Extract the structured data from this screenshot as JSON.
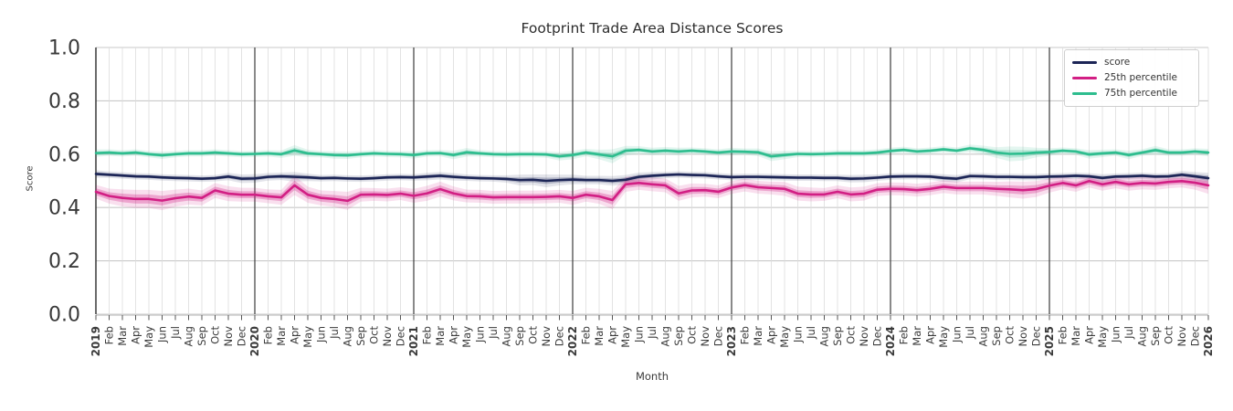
{
  "title": "Footprint Trade Area Distance Scores",
  "axes": {
    "xlabel": "Month",
    "ylabel": "Score"
  },
  "colors": {
    "background": "#ffffff",
    "title_text": "#2d2d2d",
    "tick_text": "#3a3a3a",
    "grid_minor": "#dcdcdc",
    "grid_major_h": "#c9c9c9",
    "year_line": "#3b3b3b",
    "spine_left": "#2b2b2b",
    "spine_bottom": "#cccccc",
    "legend_border": "#cfcfcf"
  },
  "chart_data": {
    "type": "line",
    "title": "Footprint Trade Area Distance Scores",
    "xlabel": "Month",
    "ylabel": "Score",
    "ylim": [
      0.0,
      1.0
    ],
    "y_ticks": [
      0.0,
      0.2,
      0.4,
      0.6,
      0.8,
      1.0
    ],
    "grid": true,
    "legend_position": "upper right",
    "year_indices": [
      0,
      12,
      24,
      36,
      48,
      60,
      72,
      84
    ],
    "x_labels": [
      "2019",
      "Feb",
      "Mar",
      "Apr",
      "May",
      "Jun",
      "Jul",
      "Aug",
      "Sep",
      "Oct",
      "Nov",
      "Dec",
      "2020",
      "Feb",
      "Mar",
      "Apr",
      "May",
      "Jun",
      "Jul",
      "Aug",
      "Sep",
      "Oct",
      "Nov",
      "Dec",
      "2021",
      "Feb",
      "Mar",
      "Apr",
      "May",
      "Jun",
      "Jul",
      "Aug",
      "Sep",
      "Oct",
      "Nov",
      "Dec",
      "2022",
      "Feb",
      "Mar",
      "Apr",
      "May",
      "Jun",
      "Jul",
      "Aug",
      "Sep",
      "Oct",
      "Nov",
      "Dec",
      "2023",
      "Feb",
      "Mar",
      "Apr",
      "May",
      "Jun",
      "Jul",
      "Aug",
      "Sep",
      "Oct",
      "Nov",
      "Dec",
      "2024",
      "Feb",
      "Mar",
      "Apr",
      "May",
      "Jun",
      "Jul",
      "Aug",
      "Sep",
      "Oct",
      "Nov",
      "Dec",
      "2025",
      "Feb",
      "Mar",
      "Apr",
      "May",
      "Jun",
      "Jul",
      "Aug",
      "Sep",
      "Oct",
      "Nov",
      "Dec",
      "2026"
    ],
    "series": [
      {
        "name": "score",
        "color": "#1c2556",
        "band_alpha_inner": 0.25,
        "band_alpha_outer": 0.12,
        "values": [
          0.526,
          0.523,
          0.52,
          0.517,
          0.516,
          0.513,
          0.511,
          0.51,
          0.508,
          0.51,
          0.516,
          0.508,
          0.509,
          0.515,
          0.517,
          0.515,
          0.513,
          0.51,
          0.511,
          0.509,
          0.508,
          0.51,
          0.513,
          0.514,
          0.513,
          0.516,
          0.519,
          0.515,
          0.512,
          0.51,
          0.509,
          0.507,
          0.503,
          0.504,
          0.5,
          0.503,
          0.505,
          0.503,
          0.503,
          0.5,
          0.504,
          0.515,
          0.519,
          0.522,
          0.524,
          0.522,
          0.521,
          0.517,
          0.514,
          0.515,
          0.515,
          0.514,
          0.513,
          0.512,
          0.512,
          0.511,
          0.511,
          0.508,
          0.509,
          0.512,
          0.516,
          0.517,
          0.517,
          0.516,
          0.511,
          0.508,
          0.518,
          0.517,
          0.515,
          0.515,
          0.514,
          0.514,
          0.516,
          0.517,
          0.519,
          0.517,
          0.511,
          0.516,
          0.517,
          0.519,
          0.516,
          0.517,
          0.523,
          0.517,
          0.51
        ],
        "band": [
          0.007,
          0.006,
          0.006,
          0.006,
          0.006,
          0.006,
          0.006,
          0.006,
          0.006,
          0.006,
          0.007,
          0.008,
          0.008,
          0.007,
          0.007,
          0.009,
          0.007,
          0.006,
          0.006,
          0.006,
          0.006,
          0.006,
          0.006,
          0.006,
          0.006,
          0.007,
          0.007,
          0.007,
          0.006,
          0.006,
          0.006,
          0.007,
          0.01,
          0.01,
          0.012,
          0.01,
          0.009,
          0.008,
          0.008,
          0.009,
          0.009,
          0.008,
          0.007,
          0.006,
          0.006,
          0.006,
          0.006,
          0.006,
          0.006,
          0.006,
          0.006,
          0.006,
          0.006,
          0.006,
          0.006,
          0.006,
          0.006,
          0.007,
          0.007,
          0.006,
          0.006,
          0.006,
          0.006,
          0.006,
          0.007,
          0.007,
          0.006,
          0.006,
          0.006,
          0.006,
          0.006,
          0.006,
          0.006,
          0.006,
          0.006,
          0.006,
          0.007,
          0.006,
          0.006,
          0.006,
          0.006,
          0.006,
          0.007,
          0.008,
          0.01
        ]
      },
      {
        "name": "25th percentile",
        "color": "#d21f84",
        "band_alpha_inner": 0.3,
        "band_alpha_outer": 0.14,
        "values": [
          0.459,
          0.443,
          0.436,
          0.432,
          0.432,
          0.426,
          0.435,
          0.441,
          0.436,
          0.464,
          0.452,
          0.448,
          0.448,
          0.442,
          0.438,
          0.483,
          0.448,
          0.436,
          0.432,
          0.425,
          0.448,
          0.449,
          0.447,
          0.452,
          0.444,
          0.453,
          0.469,
          0.453,
          0.443,
          0.442,
          0.438,
          0.439,
          0.439,
          0.439,
          0.44,
          0.442,
          0.436,
          0.448,
          0.442,
          0.428,
          0.487,
          0.492,
          0.487,
          0.483,
          0.453,
          0.464,
          0.465,
          0.459,
          0.475,
          0.484,
          0.476,
          0.473,
          0.47,
          0.452,
          0.449,
          0.449,
          0.459,
          0.449,
          0.452,
          0.467,
          0.47,
          0.469,
          0.465,
          0.47,
          0.478,
          0.473,
          0.473,
          0.473,
          0.47,
          0.468,
          0.465,
          0.469,
          0.482,
          0.492,
          0.483,
          0.499,
          0.487,
          0.496,
          0.487,
          0.492,
          0.49,
          0.496,
          0.499,
          0.493,
          0.483
        ],
        "band": [
          0.013,
          0.014,
          0.016,
          0.017,
          0.017,
          0.018,
          0.016,
          0.015,
          0.014,
          0.014,
          0.014,
          0.013,
          0.013,
          0.013,
          0.014,
          0.018,
          0.015,
          0.014,
          0.015,
          0.017,
          0.013,
          0.012,
          0.012,
          0.012,
          0.013,
          0.014,
          0.014,
          0.013,
          0.012,
          0.012,
          0.012,
          0.012,
          0.012,
          0.012,
          0.012,
          0.012,
          0.013,
          0.013,
          0.014,
          0.017,
          0.014,
          0.013,
          0.013,
          0.013,
          0.014,
          0.013,
          0.012,
          0.012,
          0.012,
          0.012,
          0.012,
          0.012,
          0.013,
          0.013,
          0.013,
          0.012,
          0.012,
          0.013,
          0.013,
          0.012,
          0.012,
          0.012,
          0.012,
          0.012,
          0.012,
          0.012,
          0.012,
          0.012,
          0.013,
          0.015,
          0.016,
          0.015,
          0.013,
          0.012,
          0.012,
          0.012,
          0.012,
          0.012,
          0.012,
          0.012,
          0.012,
          0.012,
          0.012,
          0.013,
          0.016
        ]
      },
      {
        "name": "75th percentile",
        "color": "#2dbd8e",
        "band_alpha_inner": 0.28,
        "band_alpha_outer": 0.13,
        "values": [
          0.604,
          0.606,
          0.603,
          0.606,
          0.6,
          0.596,
          0.6,
          0.603,
          0.603,
          0.606,
          0.603,
          0.6,
          0.601,
          0.603,
          0.6,
          0.614,
          0.603,
          0.6,
          0.597,
          0.596,
          0.6,
          0.603,
          0.601,
          0.6,
          0.597,
          0.603,
          0.604,
          0.597,
          0.607,
          0.603,
          0.6,
          0.599,
          0.6,
          0.6,
          0.599,
          0.592,
          0.597,
          0.606,
          0.599,
          0.592,
          0.613,
          0.616,
          0.61,
          0.613,
          0.61,
          0.613,
          0.61,
          0.606,
          0.61,
          0.609,
          0.607,
          0.592,
          0.597,
          0.601,
          0.6,
          0.601,
          0.603,
          0.603,
          0.603,
          0.606,
          0.612,
          0.616,
          0.61,
          0.613,
          0.618,
          0.613,
          0.622,
          0.616,
          0.606,
          0.601,
          0.602,
          0.606,
          0.608,
          0.613,
          0.61,
          0.599,
          0.603,
          0.606,
          0.597,
          0.606,
          0.615,
          0.606,
          0.606,
          0.61,
          0.606
        ],
        "band": [
          0.007,
          0.006,
          0.006,
          0.006,
          0.006,
          0.007,
          0.006,
          0.006,
          0.006,
          0.006,
          0.006,
          0.006,
          0.006,
          0.006,
          0.007,
          0.01,
          0.007,
          0.006,
          0.007,
          0.007,
          0.006,
          0.006,
          0.006,
          0.006,
          0.007,
          0.006,
          0.006,
          0.008,
          0.008,
          0.006,
          0.006,
          0.006,
          0.006,
          0.006,
          0.006,
          0.008,
          0.008,
          0.007,
          0.009,
          0.013,
          0.009,
          0.007,
          0.007,
          0.007,
          0.007,
          0.006,
          0.006,
          0.006,
          0.007,
          0.006,
          0.007,
          0.009,
          0.008,
          0.006,
          0.006,
          0.006,
          0.006,
          0.006,
          0.006,
          0.006,
          0.006,
          0.006,
          0.006,
          0.006,
          0.006,
          0.006,
          0.007,
          0.008,
          0.01,
          0.014,
          0.013,
          0.009,
          0.007,
          0.006,
          0.006,
          0.008,
          0.007,
          0.006,
          0.008,
          0.006,
          0.008,
          0.006,
          0.006,
          0.006,
          0.007
        ]
      }
    ]
  }
}
